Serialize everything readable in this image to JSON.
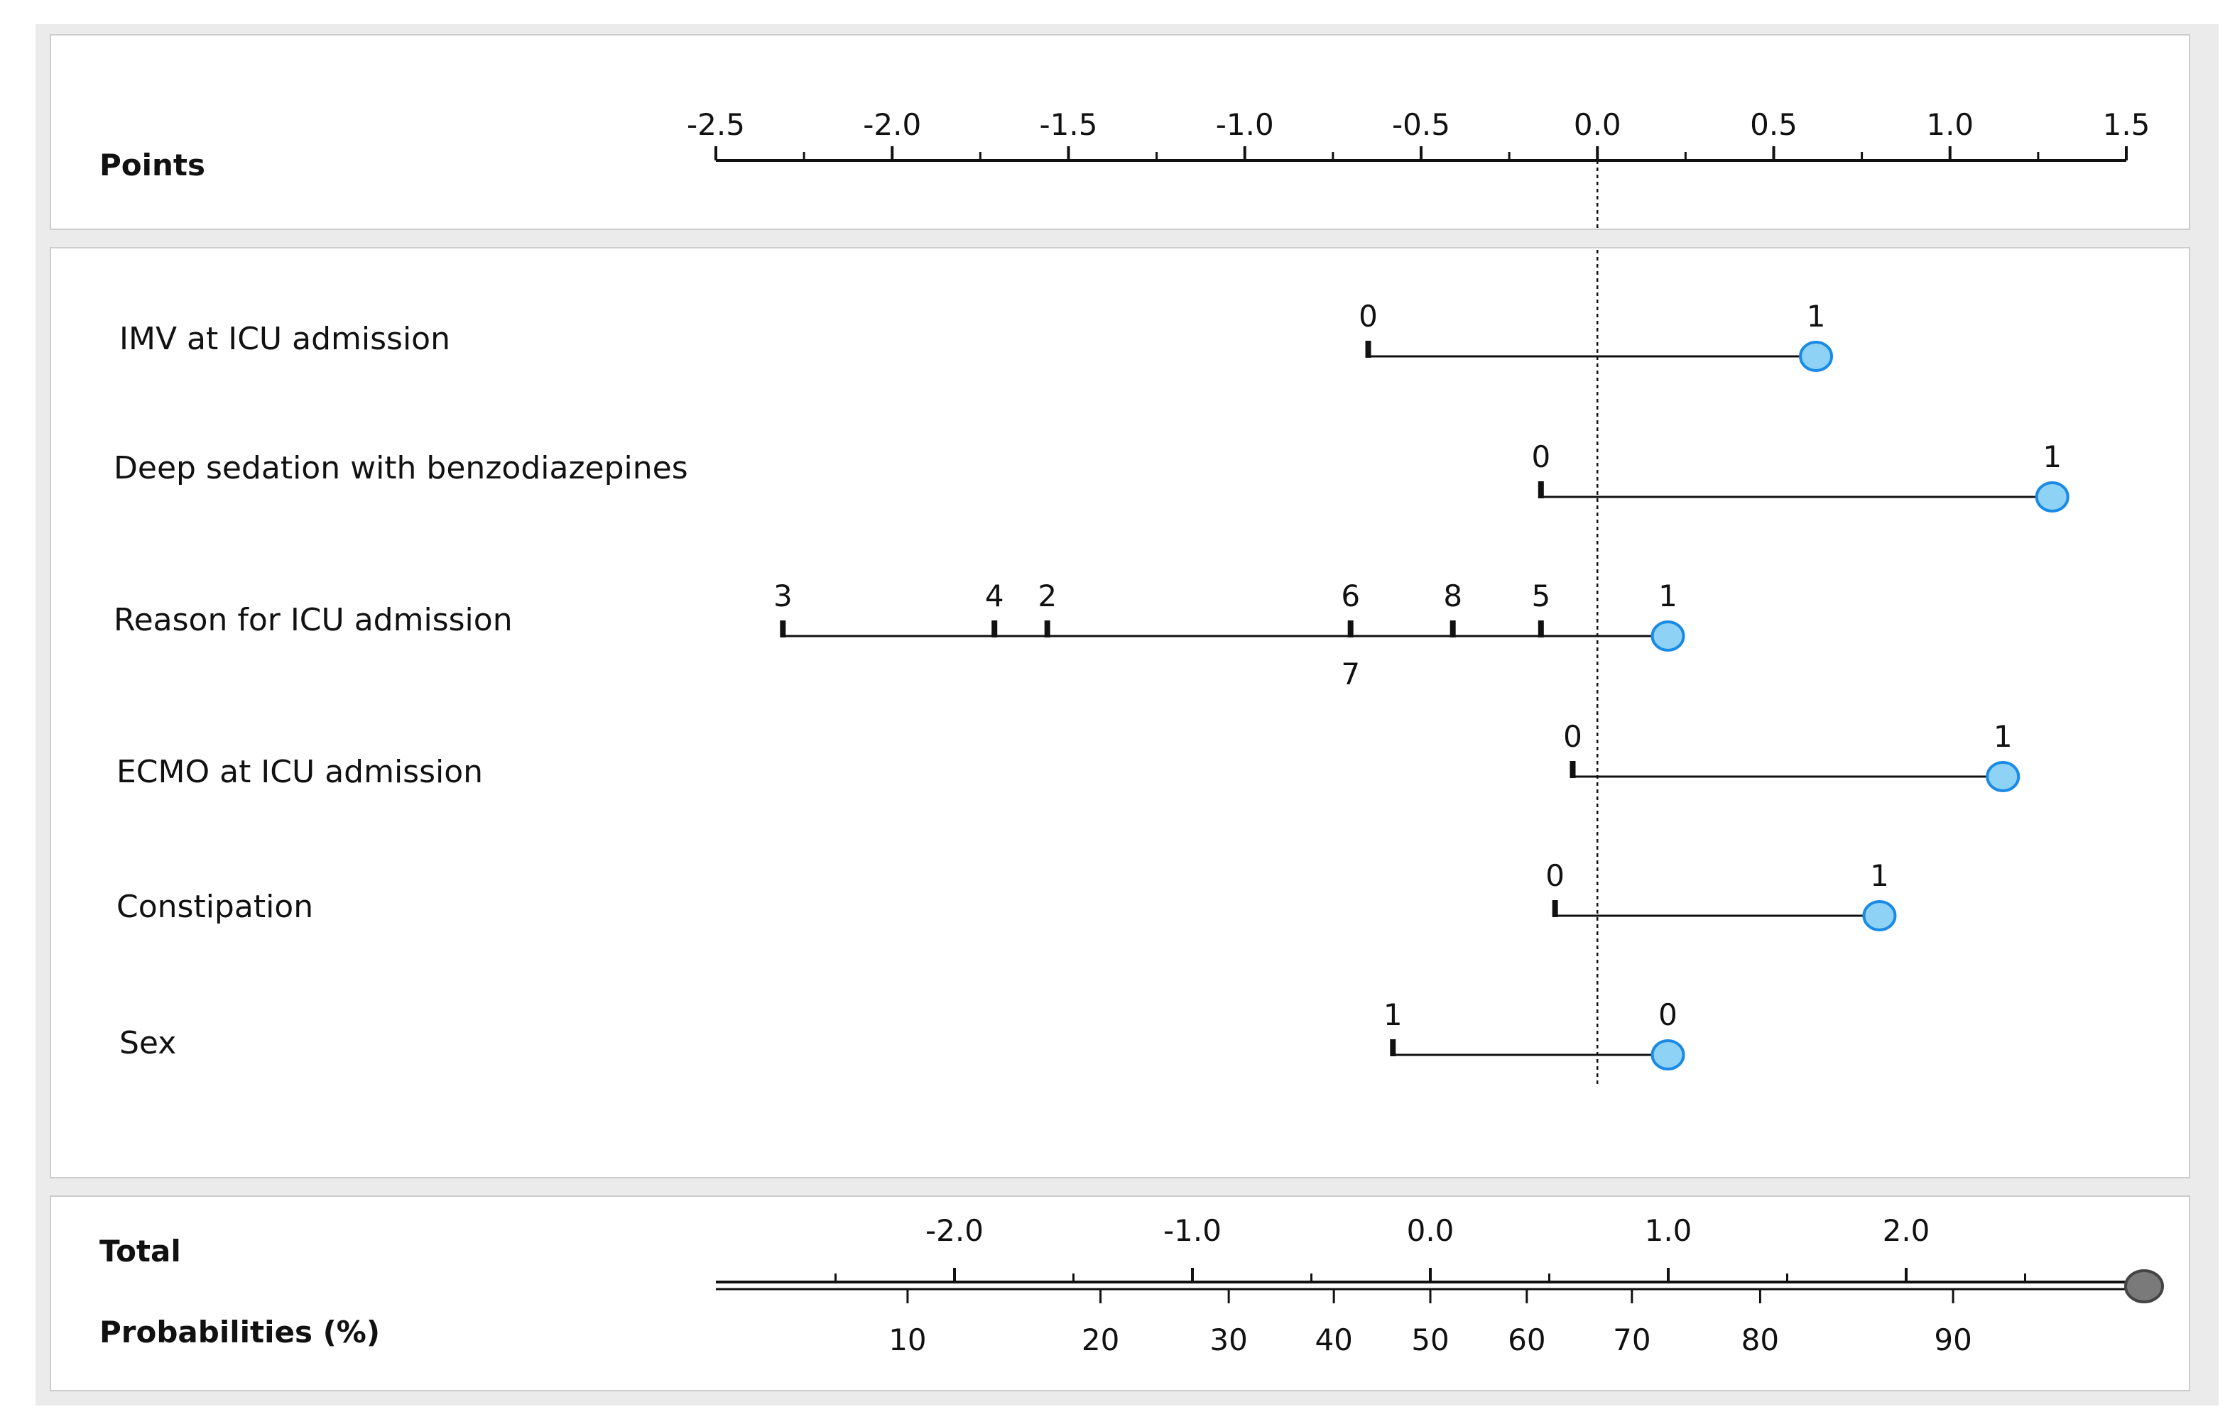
{
  "chart_data": {
    "type": "nomogram",
    "points_axis": {
      "label": "Points",
      "range": [
        -2.5,
        1.5
      ],
      "major_ticks": [
        -2.5,
        -2.0,
        -1.5,
        -1.0,
        -0.5,
        0.0,
        0.5,
        1.0,
        1.5
      ],
      "tick_labels": [
        "-2.5",
        "-2.0",
        "-1.5",
        "-1.0",
        "-0.5",
        "0.0",
        "0.5",
        "1.0",
        "1.5"
      ],
      "minor_ticks": [
        -2.25,
        -1.75,
        -1.25,
        -0.75,
        -0.25,
        0.25,
        0.75,
        1.25
      ]
    },
    "reference_line": 0.0,
    "variables": [
      {
        "name": "IMV at ICU admission",
        "range": [
          -0.65,
          0.62
        ],
        "ticks": [
          {
            "label": "0",
            "points": -0.65
          }
        ],
        "selected": {
          "label": "1",
          "points": 0.62
        }
      },
      {
        "name": "Deep sedation with benzodiazepines",
        "range": [
          -0.16,
          1.29
        ],
        "ticks": [
          {
            "label": "0",
            "points": -0.16
          }
        ],
        "selected": {
          "label": "1",
          "points": 1.29
        }
      },
      {
        "name": "Reason for ICU admission",
        "range": [
          -2.31,
          0.2
        ],
        "ticks": [
          {
            "label": "3",
            "points": -2.31
          },
          {
            "label": "4",
            "points": -1.71
          },
          {
            "label": "2",
            "points": -1.56
          },
          {
            "label": "6",
            "points": -0.7
          },
          {
            "label": "7",
            "points": -0.7
          },
          {
            "label": "8",
            "points": -0.41
          },
          {
            "label": "5",
            "points": -0.16
          }
        ],
        "selected": {
          "label": "1",
          "points": 0.2
        }
      },
      {
        "name": "ECMO at ICU admission",
        "range": [
          -0.07,
          1.15
        ],
        "ticks": [
          {
            "label": "0",
            "points": -0.07
          }
        ],
        "selected": {
          "label": "1",
          "points": 1.15
        }
      },
      {
        "name": "Constipation",
        "range": [
          -0.12,
          0.8
        ],
        "ticks": [
          {
            "label": "0",
            "points": -0.12
          }
        ],
        "selected": {
          "label": "1",
          "points": 0.8
        }
      },
      {
        "name": "Sex",
        "range": [
          -0.58,
          0.2
        ],
        "ticks": [
          {
            "label": "1",
            "points": -0.58
          }
        ],
        "selected": {
          "label": "0",
          "points": 0.2
        }
      }
    ],
    "total_axis": {
      "label": "Total",
      "range": [
        -2.8,
        3.0
      ],
      "major_ticks": [
        -2.0,
        -1.0,
        0.0,
        1.0,
        2.0
      ],
      "tick_labels": [
        "-2.0",
        "-1.0",
        "0.0",
        "1.0",
        "2.0"
      ],
      "minor_ticks": [
        -2.5,
        -1.5,
        -0.5,
        0.5,
        1.5,
        2.5
      ],
      "selected_value": 3.0
    },
    "probability_axis": {
      "label": "Probabilities (%)",
      "ticks": [
        10,
        20,
        30,
        40,
        50,
        60,
        70,
        80,
        90
      ],
      "tick_labels": [
        "10",
        "20",
        "30",
        "40",
        "50",
        "60",
        "70",
        "80",
        "90"
      ]
    },
    "colors": {
      "marker_fill": "#8ed2f5",
      "marker_stroke": "#1a8ae6",
      "total_marker": "#7a7a7a"
    }
  }
}
